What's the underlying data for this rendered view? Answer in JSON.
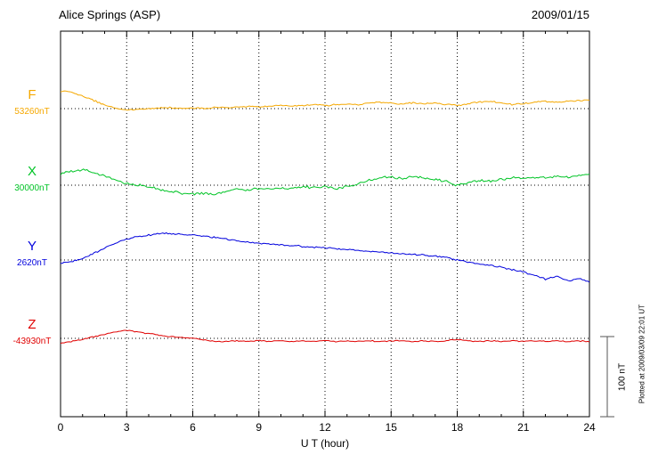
{
  "header": {
    "station": "Alice Springs (ASP)",
    "date": "2009/01/15"
  },
  "footer_note": "Plotted at 2009/03/09 22:01 UT",
  "scale_bar": {
    "label": "100 nT",
    "nT": 100
  },
  "chart_data": {
    "type": "line",
    "title": "Alice Springs (ASP) magnetogram 2009/01/15",
    "xlabel": "U T (hour)",
    "xlim": [
      0,
      24
    ],
    "x_ticks": [
      0,
      3,
      6,
      9,
      12,
      15,
      18,
      21,
      24
    ],
    "grid": "dotted vertical at 3h intervals, dotted horizontal baseline per component",
    "legend_position": "left baselines",
    "series": [
      {
        "name": "F",
        "baseline_label": "53260nT",
        "baseline_nT": 53260,
        "color": "#f5a800",
        "noise_nT": 1.5,
        "units": "nT offset from baseline",
        "points": [
          [
            0,
            22
          ],
          [
            0.5,
            20
          ],
          [
            1,
            16
          ],
          [
            1.5,
            10
          ],
          [
            2,
            5
          ],
          [
            2.5,
            1
          ],
          [
            3,
            -2
          ],
          [
            3.5,
            -1
          ],
          [
            4,
            0
          ],
          [
            4.5,
            1
          ],
          [
            5,
            1
          ],
          [
            5.5,
            0
          ],
          [
            6,
            1
          ],
          [
            6.5,
            0
          ],
          [
            7,
            2
          ],
          [
            7.5,
            1
          ],
          [
            8,
            2
          ],
          [
            8.5,
            3
          ],
          [
            9,
            2
          ],
          [
            9.5,
            3
          ],
          [
            10,
            4
          ],
          [
            10.5,
            3
          ],
          [
            11,
            4
          ],
          [
            11.5,
            5
          ],
          [
            12,
            4
          ],
          [
            12.5,
            5
          ],
          [
            13,
            6
          ],
          [
            13.5,
            5
          ],
          [
            14,
            7
          ],
          [
            14.5,
            8
          ],
          [
            15,
            7
          ],
          [
            15.5,
            6
          ],
          [
            16,
            7
          ],
          [
            16.5,
            6
          ],
          [
            17,
            7
          ],
          [
            17.5,
            5
          ],
          [
            18,
            4
          ],
          [
            18.5,
            6
          ],
          [
            19,
            8
          ],
          [
            19.5,
            9
          ],
          [
            20,
            7
          ],
          [
            20.5,
            5
          ],
          [
            21,
            6
          ],
          [
            21.5,
            8
          ],
          [
            22,
            9
          ],
          [
            22.5,
            8
          ],
          [
            23,
            9
          ],
          [
            23.5,
            10
          ],
          [
            24,
            11
          ]
        ]
      },
      {
        "name": "X",
        "baseline_label": "30000nT",
        "baseline_nT": 30000,
        "color": "#00c426",
        "noise_nT": 2.5,
        "units": "nT offset from baseline",
        "points": [
          [
            0,
            14
          ],
          [
            0.5,
            17
          ],
          [
            1,
            19
          ],
          [
            1.5,
            16
          ],
          [
            2,
            12
          ],
          [
            2.5,
            6
          ],
          [
            3,
            2
          ],
          [
            3.5,
            0
          ],
          [
            4,
            -2
          ],
          [
            4.5,
            -5
          ],
          [
            5,
            -8
          ],
          [
            5.5,
            -10
          ],
          [
            6,
            -11
          ],
          [
            6.5,
            -10
          ],
          [
            7,
            -12
          ],
          [
            7.5,
            -8
          ],
          [
            8,
            -5
          ],
          [
            8.5,
            -6
          ],
          [
            9,
            -4
          ],
          [
            9.5,
            -5
          ],
          [
            10,
            -3
          ],
          [
            10.5,
            -4
          ],
          [
            11,
            -2
          ],
          [
            11.5,
            -3
          ],
          [
            12,
            -1
          ],
          [
            12.5,
            -4
          ],
          [
            13,
            -2
          ],
          [
            13.5,
            2
          ],
          [
            14,
            6
          ],
          [
            14.5,
            9
          ],
          [
            15,
            10
          ],
          [
            15.5,
            8
          ],
          [
            16,
            11
          ],
          [
            16.5,
            9
          ],
          [
            17,
            7
          ],
          [
            17.5,
            5
          ],
          [
            18,
            -1
          ],
          [
            18.5,
            4
          ],
          [
            19,
            6
          ],
          [
            19.5,
            5
          ],
          [
            20,
            7
          ],
          [
            20.5,
            9
          ],
          [
            21,
            8
          ],
          [
            21.5,
            10
          ],
          [
            22,
            9
          ],
          [
            22.5,
            11
          ],
          [
            23,
            10
          ],
          [
            23.5,
            12
          ],
          [
            24,
            13
          ]
        ]
      },
      {
        "name": "Y",
        "baseline_label": "2620nT",
        "baseline_nT": 2620,
        "color": "#0000dd",
        "noise_nT": 1.6,
        "units": "nT offset from baseline",
        "points": [
          [
            0,
            -4
          ],
          [
            0.5,
            -2
          ],
          [
            1,
            2
          ],
          [
            1.5,
            8
          ],
          [
            2,
            15
          ],
          [
            2.5,
            21
          ],
          [
            3,
            26
          ],
          [
            3.5,
            29
          ],
          [
            4,
            31
          ],
          [
            4.5,
            33
          ],
          [
            5,
            33
          ],
          [
            5.5,
            32
          ],
          [
            6,
            31
          ],
          [
            6.5,
            30
          ],
          [
            7,
            28
          ],
          [
            7.5,
            26
          ],
          [
            8,
            24
          ],
          [
            8.5,
            22
          ],
          [
            9,
            21
          ],
          [
            9.5,
            20
          ],
          [
            10,
            19
          ],
          [
            10.5,
            18
          ],
          [
            11,
            17
          ],
          [
            11.5,
            16
          ],
          [
            12,
            15
          ],
          [
            12.5,
            14
          ],
          [
            13,
            13
          ],
          [
            13.5,
            12
          ],
          [
            14,
            11
          ],
          [
            14.5,
            10
          ],
          [
            15,
            9
          ],
          [
            15.5,
            8
          ],
          [
            16,
            7
          ],
          [
            16.5,
            6
          ],
          [
            17,
            5
          ],
          [
            17.5,
            3
          ],
          [
            18,
            0
          ],
          [
            18.5,
            -3
          ],
          [
            19,
            -5
          ],
          [
            19.5,
            -7
          ],
          [
            20,
            -9
          ],
          [
            20.5,
            -12
          ],
          [
            21,
            -15
          ],
          [
            21.5,
            -19
          ],
          [
            22,
            -24
          ],
          [
            22.5,
            -20
          ],
          [
            23,
            -26
          ],
          [
            23.5,
            -23
          ],
          [
            24,
            -27
          ]
        ]
      },
      {
        "name": "Z",
        "baseline_label": "-43930nT",
        "baseline_nT": -43930,
        "color": "#e00000",
        "noise_nT": 1.1,
        "units": "nT offset from baseline",
        "points": [
          [
            0,
            -6
          ],
          [
            0.5,
            -4
          ],
          [
            1,
            -1
          ],
          [
            1.5,
            2
          ],
          [
            2,
            5
          ],
          [
            2.5,
            8
          ],
          [
            3,
            10
          ],
          [
            3.5,
            8
          ],
          [
            4,
            6
          ],
          [
            4.5,
            4
          ],
          [
            5,
            2
          ],
          [
            5.5,
            1
          ],
          [
            6,
            0
          ],
          [
            6.5,
            -2
          ],
          [
            7,
            -4
          ],
          [
            7.5,
            -4
          ],
          [
            8,
            -3
          ],
          [
            8.5,
            -4
          ],
          [
            9,
            -3
          ],
          [
            9.5,
            -4
          ],
          [
            10,
            -3
          ],
          [
            10.5,
            -4
          ],
          [
            11,
            -3
          ],
          [
            11.5,
            -4
          ],
          [
            12,
            -3
          ],
          [
            12.5,
            -4
          ],
          [
            13,
            -3
          ],
          [
            13.5,
            -4
          ],
          [
            14,
            -3
          ],
          [
            14.5,
            -4
          ],
          [
            15,
            -3
          ],
          [
            15.5,
            -3
          ],
          [
            16,
            -4
          ],
          [
            16.5,
            -3
          ],
          [
            17,
            -4
          ],
          [
            17.5,
            -3
          ],
          [
            18,
            -1
          ],
          [
            18.5,
            -3
          ],
          [
            19,
            -4
          ],
          [
            19.5,
            -3
          ],
          [
            20,
            -4
          ],
          [
            20.5,
            -3
          ],
          [
            21,
            -4
          ],
          [
            21.5,
            -3
          ],
          [
            22,
            -4
          ],
          [
            22.5,
            -3
          ],
          [
            23,
            -4
          ],
          [
            23.5,
            -3
          ],
          [
            24,
            -4
          ]
        ]
      }
    ]
  }
}
